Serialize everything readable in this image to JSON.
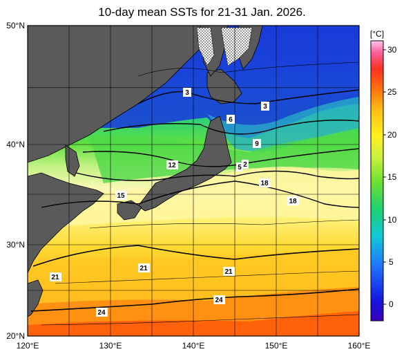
{
  "title": "10-day mean SSTs for 21-31 Jan. 2026.",
  "unit": "[°C]",
  "lat_labels": [
    "50°N",
    "40°N",
    "30°N",
    "20°N"
  ],
  "lon_labels": [
    "120°E",
    "130°E",
    "140°E",
    "150°E",
    "160°E"
  ],
  "colorbar_ticks": [
    "30",
    "25",
    "20",
    "15",
    "10",
    "5",
    "0"
  ],
  "isotherm_labels": [
    "3",
    "3",
    "6",
    "9",
    "12",
    "5",
    "2",
    "15",
    "18",
    "18",
    "21",
    "21",
    "21",
    "24",
    "24"
  ],
  "colors": {
    "land": "#5a5a5a",
    "sea_ice_pattern": "dotted"
  }
}
